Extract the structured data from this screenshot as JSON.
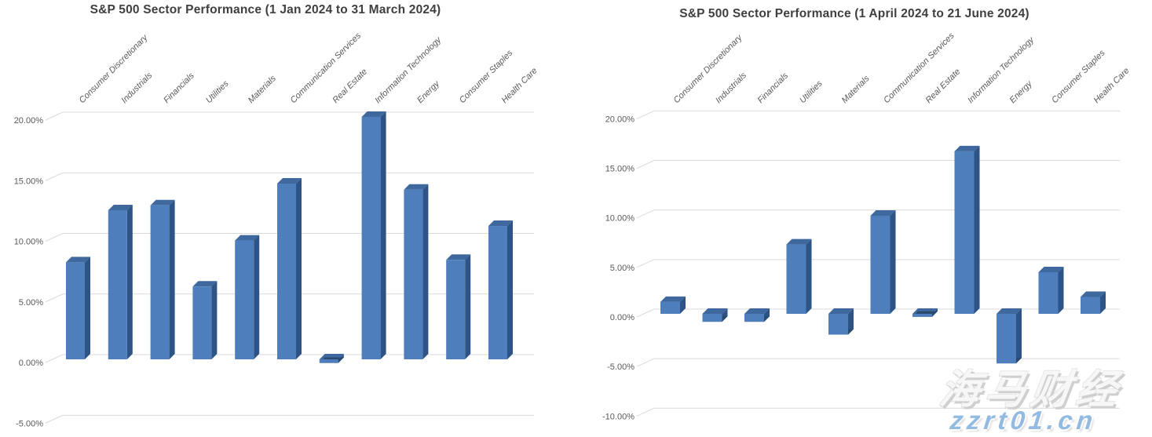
{
  "colors": {
    "title_text": "#3f3f3f",
    "axis_text": "#595959",
    "gridline": "#d9d9d9",
    "bar_front": "#4E7EBB",
    "bar_top": "#3E689E",
    "bar_side": "#2E5386",
    "bar_bottom": "#29496E",
    "watermark_brand": "#f7f7f7",
    "watermark_domain": "#93BAE1"
  },
  "watermark": {
    "brand_text": "海马财经",
    "domain_text": "zzrt01.cn"
  },
  "chart_data": [
    {
      "type": "bar",
      "style": "3d-column",
      "title": "S&P 500 Sector Performance (1 Jan 2024 to 31 March 2024)",
      "xlabel": "",
      "ylabel": "",
      "grid": true,
      "legend": false,
      "unit": "%",
      "ylim": [
        -5,
        20
      ],
      "categories": [
        "Consumer Discretionary",
        "Industrials",
        "Financials",
        "Utilities",
        "Materials",
        "Communication Services",
        "Real Estate",
        "Information Technology",
        "Energy",
        "Consumer Staples",
        "Health Care"
      ],
      "values": [
        8.0,
        12.3,
        12.7,
        6.0,
        9.8,
        14.5,
        -0.3,
        20.0,
        14.0,
        8.2,
        11.0
      ],
      "yticks": [
        {
          "value": 20,
          "label": "20.00%"
        },
        {
          "value": 15,
          "label": "15.00%"
        },
        {
          "value": 10,
          "label": "10.00%"
        },
        {
          "value": 5,
          "label": "5.00%"
        },
        {
          "value": 0,
          "label": "0.00%"
        },
        {
          "value": -5,
          "label": "-5.00%"
        }
      ]
    },
    {
      "type": "bar",
      "style": "3d-column",
      "title": "S&P 500 Sector Performance (1 April 2024 to 21 June 2024)",
      "xlabel": "",
      "ylabel": "",
      "grid": true,
      "legend": false,
      "unit": "%",
      "ylim": [
        -10,
        20
      ],
      "categories": [
        "Consumer Discretionary",
        "Industrials",
        "Financials",
        "Utilities",
        "Materials",
        "Communication Services",
        "Real Estate",
        "Information Technology",
        "Energy",
        "Consumer Staples",
        "Health Care"
      ],
      "values": [
        1.2,
        -0.8,
        -0.8,
        7.0,
        -2.1,
        9.9,
        -0.3,
        16.4,
        -5.0,
        4.2,
        1.7
      ],
      "yticks": [
        {
          "value": 20,
          "label": "20.00%"
        },
        {
          "value": 15,
          "label": "15.00%"
        },
        {
          "value": 10,
          "label": "10.00%"
        },
        {
          "value": 5,
          "label": "5.00%"
        },
        {
          "value": 0,
          "label": "0.00%"
        },
        {
          "value": -5,
          "label": "-5.00%"
        },
        {
          "value": -10,
          "label": "-10.00%"
        }
      ]
    }
  ]
}
